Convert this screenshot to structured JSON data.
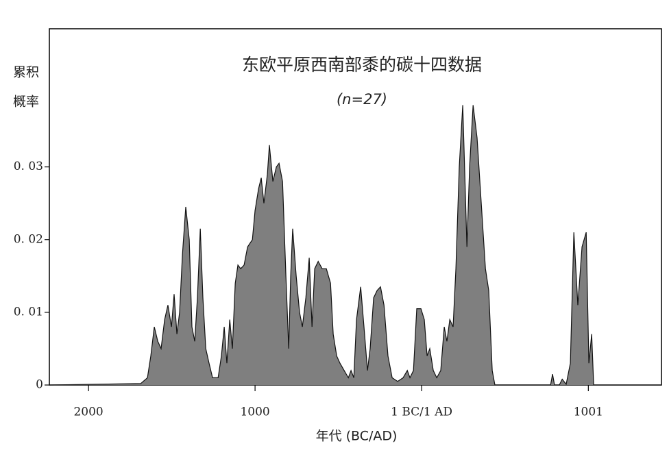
{
  "chart_data": {
    "type": "area",
    "title": "东欧平原西南部黍的碳十四数据",
    "subtitle": "(n=27)",
    "ylabel_lines": [
      "累积",
      "概率"
    ],
    "xlabel": "年代 (BC/AD)",
    "color": "#7f7f7f",
    "x": [
      -2235,
      -1687,
      -1646,
      -1626,
      -1605,
      -1584,
      -1564,
      -1543,
      -1523,
      -1502,
      -1486,
      -1469,
      -1453,
      -1436,
      -1416,
      -1395,
      -1379,
      -1362,
      -1346,
      -1329,
      -1313,
      -1296,
      -1276,
      -1255,
      -1222,
      -1202,
      -1185,
      -1169,
      -1152,
      -1136,
      -1119,
      -1103,
      -1086,
      -1066,
      -1045,
      -1016,
      -1000,
      -979,
      -963,
      -947,
      -926,
      -914,
      -893,
      -872,
      -856,
      -835,
      -815,
      -798,
      -786,
      -774,
      -753,
      -733,
      -716,
      -695,
      -675,
      -658,
      -642,
      -621,
      -597,
      -572,
      -547,
      -531,
      -510,
      -490,
      -465,
      -440,
      -424,
      -407,
      -391,
      -366,
      -346,
      -325,
      -309,
      -288,
      -267,
      -247,
      -226,
      -202,
      -177,
      -144,
      -111,
      -86,
      -70,
      -49,
      -29,
      -4,
      16,
      33,
      49,
      70,
      91,
      115,
      136,
      152,
      169,
      189,
      206,
      226,
      247,
      272,
      288,
      309,
      333,
      358,
      383,
      403,
      424,
      440,
      774,
      786,
      798,
      827,
      844,
      868,
      893,
      914,
      938,
      963,
      988,
      1004,
      1021,
      1033,
      1440
    ],
    "values": [
      0,
      0.0002,
      0.001,
      0.004,
      0.008,
      0.006,
      0.005,
      0.009,
      0.011,
      0.008,
      0.0125,
      0.007,
      0.01,
      0.018,
      0.0245,
      0.02,
      0.008,
      0.006,
      0.012,
      0.0215,
      0.012,
      0.005,
      0.003,
      0.001,
      0.001,
      0.004,
      0.008,
      0.003,
      0.009,
      0.005,
      0.014,
      0.0165,
      0.016,
      0.0165,
      0.019,
      0.02,
      0.024,
      0.027,
      0.0285,
      0.025,
      0.029,
      0.033,
      0.028,
      0.03,
      0.0305,
      0.028,
      0.015,
      0.005,
      0.015,
      0.0215,
      0.015,
      0.01,
      0.008,
      0.012,
      0.0175,
      0.008,
      0.016,
      0.017,
      0.016,
      0.016,
      0.014,
      0.007,
      0.004,
      0.003,
      0.002,
      0.001,
      0.002,
      0.001,
      0.009,
      0.0135,
      0.008,
      0.002,
      0.005,
      0.012,
      0.013,
      0.0135,
      0.011,
      0.004,
      0.001,
      0.0005,
      0.001,
      0.002,
      0.001,
      0.002,
      0.0105,
      0.0105,
      0.009,
      0.004,
      0.005,
      0.002,
      0.001,
      0.002,
      0.008,
      0.006,
      0.009,
      0.008,
      0.016,
      0.03,
      0.0385,
      0.019,
      0.03,
      0.0385,
      0.034,
      0.025,
      0.016,
      0.013,
      0.002,
      0,
      0,
      0.0015,
      0,
      0,
      0.0008,
      0.0001,
      0.003,
      0.021,
      0.011,
      0.019,
      0.021,
      0.003,
      0.007,
      0,
      0
    ],
    "xlim": [
      -2235,
      1440
    ],
    "xticks": [
      {
        "value": -2000,
        "label": "2000"
      },
      {
        "value": -1000,
        "label": "1000"
      },
      {
        "value": 0,
        "label": "1 BC/1 AD"
      },
      1001
    ],
    "ylim": [
      0,
      0.049
    ],
    "yticks": [
      0,
      {
        "value": 0.01,
        "label": "0. 01"
      },
      {
        "value": 0.02,
        "label": "0. 02"
      },
      {
        "value": 0.03,
        "label": "0. 03"
      }
    ]
  }
}
